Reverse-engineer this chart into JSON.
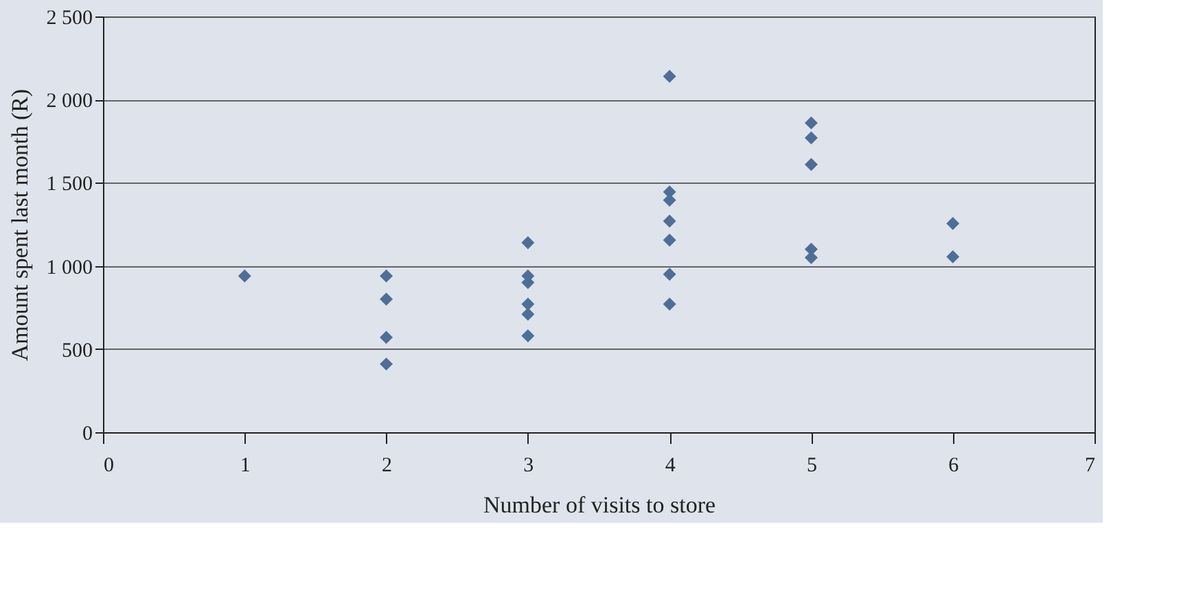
{
  "chart_data": {
    "type": "scatter",
    "xlabel": "Number of visits to store",
    "ylabel": "Amount spent last month (R)",
    "x": [
      1,
      2,
      2,
      2,
      2,
      3,
      3,
      3,
      3,
      3,
      3,
      4,
      4,
      4,
      4,
      4,
      4,
      4,
      5,
      5,
      5,
      5,
      5,
      6,
      6
    ],
    "series": [
      {
        "color": "#4e6e98",
        "values": [
          940,
          940,
          800,
          570,
          410,
          1140,
          940,
          900,
          770,
          710,
          580,
          2140,
          1445,
          1395,
          1270,
          1155,
          950,
          770,
          1860,
          1770,
          1610,
          1100,
          1050,
          1255,
          1055
        ]
      }
    ],
    "xlim": [
      0,
      7
    ],
    "xticks": [
      0,
      1,
      2,
      3,
      4,
      5,
      6,
      7
    ],
    "ylim": [
      0,
      2500
    ],
    "yticks": [
      {
        "value": 0,
        "label": "0"
      },
      {
        "value": 500,
        "label": "500"
      },
      {
        "value": 1000,
        "label": "1 000"
      },
      {
        "value": 1500,
        "label": "1 500"
      },
      {
        "value": 2000,
        "label": "2 000"
      },
      {
        "value": 2500,
        "label": "2 500"
      }
    ],
    "grid": "y",
    "marker": "diamond",
    "legend": false
  }
}
